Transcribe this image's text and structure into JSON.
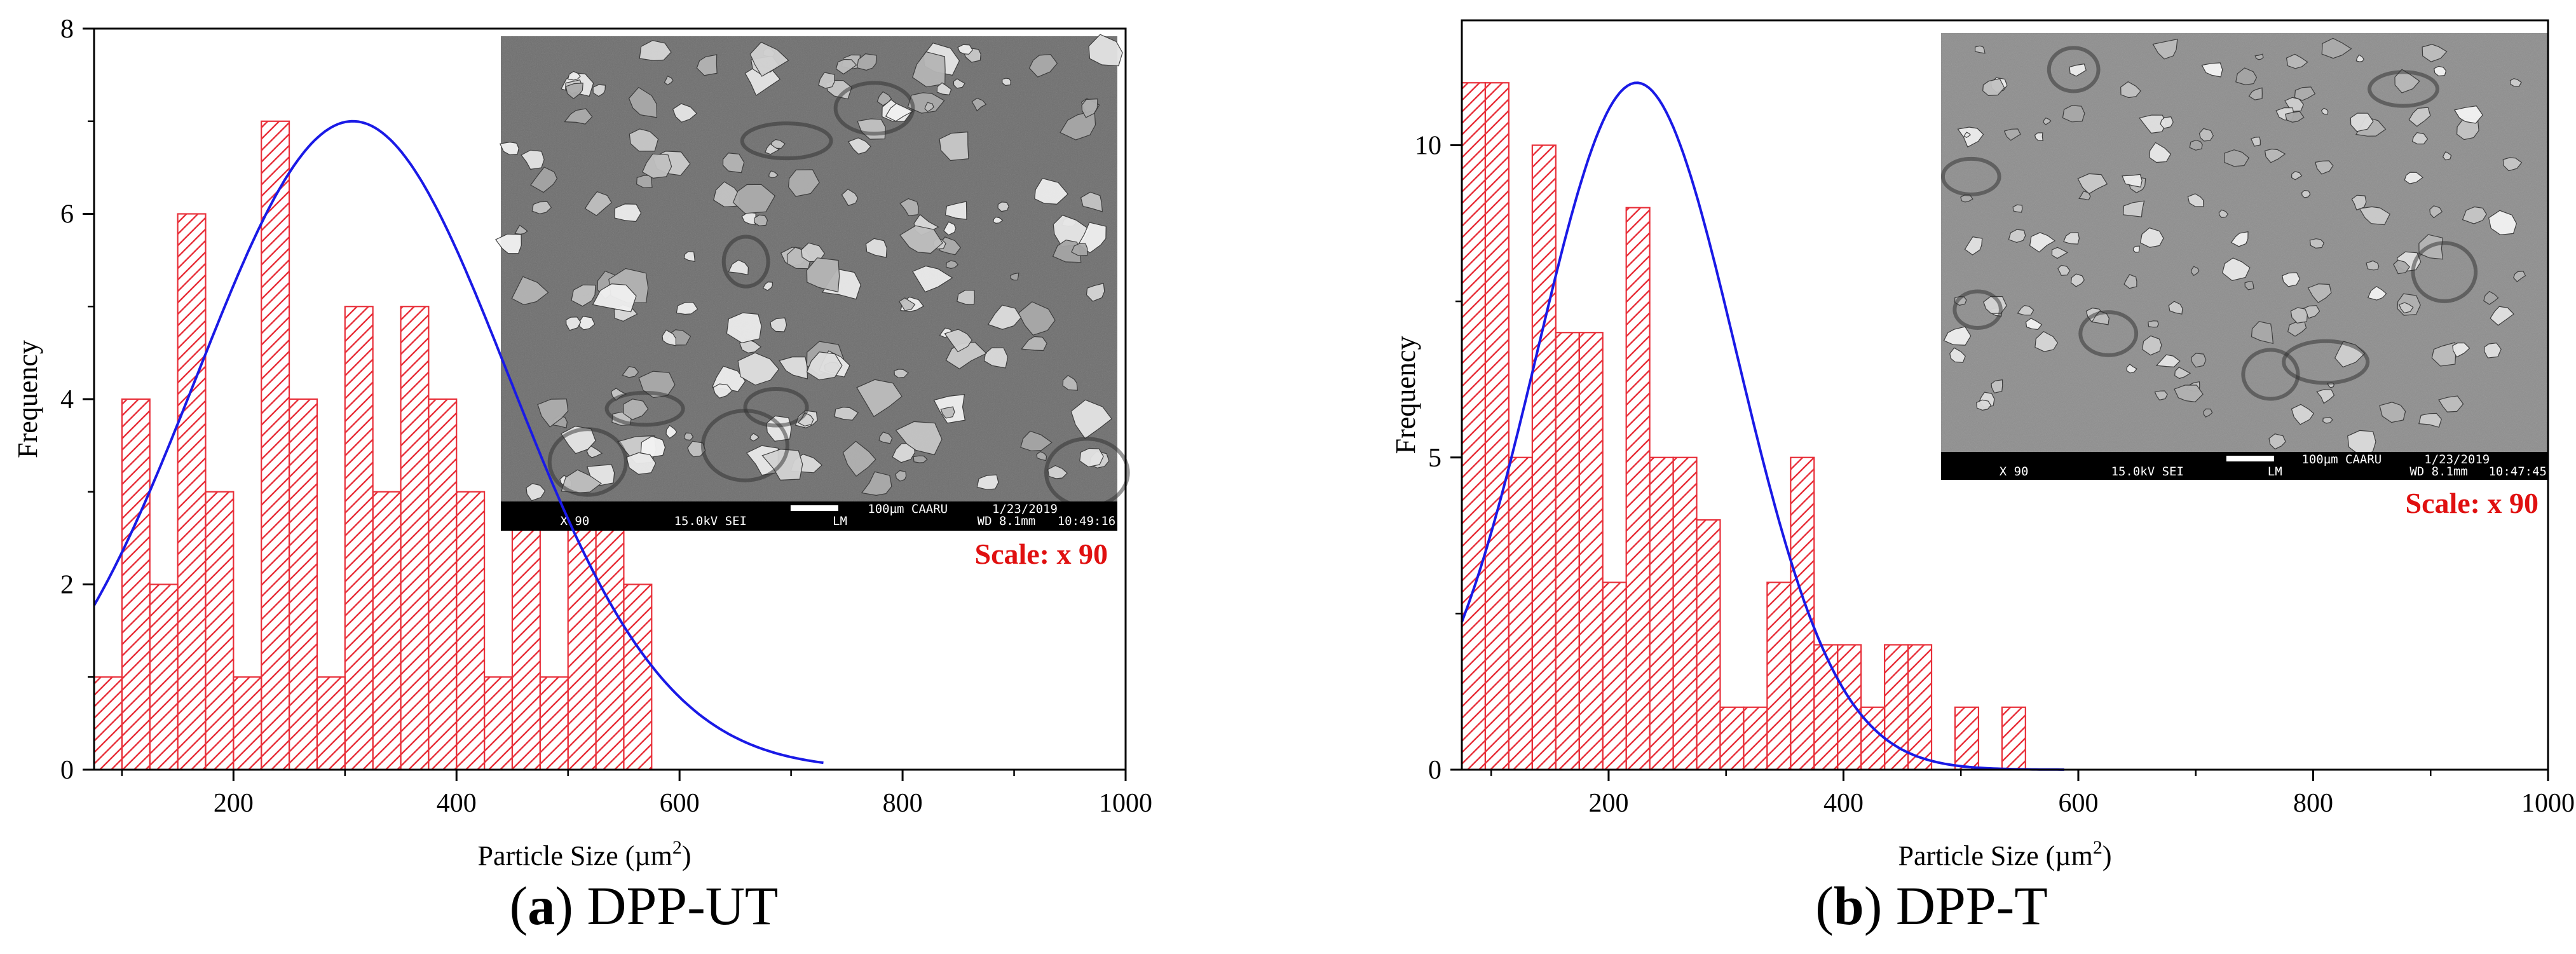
{
  "chart_data": [
    {
      "type": "bar",
      "panel": "a",
      "caption_letter": "a",
      "caption_text": "DPP-UT",
      "xlabel": "Particle Size (µm",
      "xlabel_sup": "2",
      "xlabel_tail": ")",
      "ylabel": "Frequency",
      "xlim": [
        75,
        1000
      ],
      "ylim": [
        0,
        8
      ],
      "xticks": [
        "200",
        "400",
        "600",
        "800",
        "1000"
      ],
      "yticks": [
        "0",
        "2",
        "4",
        "6",
        "8"
      ],
      "bin_width": 25,
      "bins_x": [
        75,
        100,
        125,
        150,
        175,
        200,
        225,
        250,
        275,
        300,
        325,
        350,
        375,
        400,
        425,
        450,
        475,
        500,
        525,
        550
      ],
      "bins_values": [
        1,
        4,
        2,
        6,
        3,
        1,
        7,
        4,
        1,
        5,
        3,
        5,
        4,
        3,
        1,
        4,
        1,
        3,
        3,
        2
      ],
      "fit_curve": {
        "type": "normal",
        "mean": 307,
        "sd": 140,
        "peak": 7.0,
        "x_range": [
          75,
          730
        ]
      },
      "inset": {
        "footer": [
          "X 90",
          "15.0kV SEI",
          "LM",
          "100µm CAARU",
          "WD 8.1mm",
          "1/23/2019",
          "10:49:16"
        ],
        "scale_label": "Scale: x 90"
      },
      "colors": {
        "bar": "#e8303a",
        "curve": "#1a1ae6",
        "scale_text": "#e01010"
      }
    },
    {
      "type": "bar",
      "panel": "b",
      "caption_letter": "b",
      "caption_text": "DPP-T",
      "xlabel": "Particle Size (µm",
      "xlabel_sup": "2",
      "xlabel_tail": ")",
      "ylabel": "Frequency",
      "xlim": [
        75,
        1000
      ],
      "ylim": [
        0,
        12
      ],
      "xticks": [
        "200",
        "400",
        "600",
        "800",
        "1000"
      ],
      "yticks": [
        "0",
        "5",
        "10"
      ],
      "bin_width": 20,
      "bins_x": [
        75,
        95,
        115,
        135,
        155,
        175,
        195,
        215,
        235,
        255,
        275,
        295,
        315,
        335,
        355,
        375,
        395,
        415,
        435,
        455,
        475,
        495,
        515,
        535
      ],
      "bins_values": [
        11,
        11,
        5,
        10,
        7,
        7,
        3,
        9,
        5,
        5,
        4,
        1,
        1,
        3,
        5,
        2,
        2,
        1,
        2,
        2,
        0,
        1,
        0,
        1
      ],
      "fit_curve": {
        "type": "normal",
        "mean": 224,
        "sd": 85,
        "peak": 11.0,
        "x_range": [
          75,
          590
        ]
      },
      "inset": {
        "footer": [
          "X 90",
          "15.0kV SEI",
          "LM",
          "100µm CAARU",
          "WD 8.1mm",
          "1/23/2019",
          "10:47:45"
        ],
        "scale_label": "Scale: x 90"
      },
      "colors": {
        "bar": "#e8303a",
        "curve": "#1a1ae6",
        "scale_text": "#e01010"
      }
    }
  ]
}
